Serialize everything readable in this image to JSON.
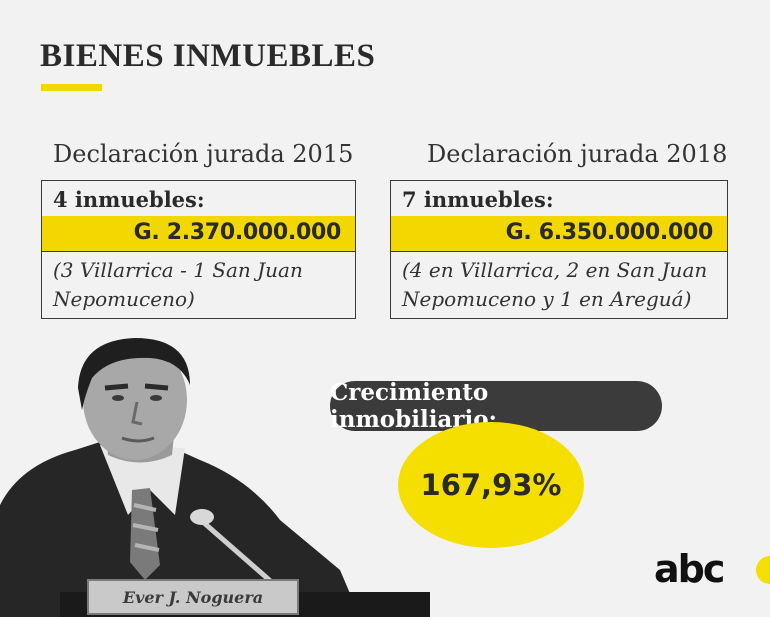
{
  "header": {
    "title": "BIENES INMUEBLES"
  },
  "declarations": [
    {
      "label": "Declaración jurada 2015",
      "count": "4 inmuebles:",
      "amount": "G. 2.370.000.000",
      "detail": "(3 Villarrica - 1 San Juan Nepomuceno)"
    },
    {
      "label": "Declaración jurada 2018",
      "count": "7 inmuebles:",
      "amount": "G. 6.350.000.000",
      "detail": "(4 en Villarrica, 2 en San Juan Nepomuceno y 1 en Areguá)"
    }
  ],
  "growth": {
    "label": "Crecimiento inmobiliario:",
    "value": "167,93%"
  },
  "photo": {
    "nameplate": "Ever J. Noguera"
  },
  "brand": {
    "logo_text": "abc",
    "accent_color": "#f2d800",
    "dark_color": "#2a2a2a"
  }
}
